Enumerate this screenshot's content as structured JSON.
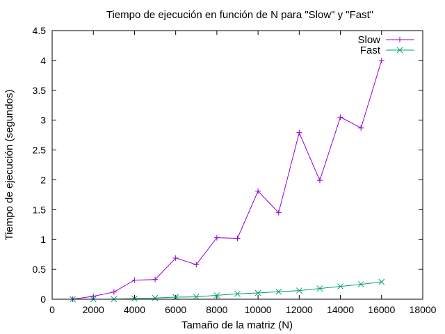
{
  "chart_data": {
    "type": "line",
    "title": "Tiempo de ejecución en función de N para \"Slow\" y \"Fast\"",
    "xlabel": "Tamaño de la matriz (N)",
    "ylabel": "Tiempo de ejecución (segundos)",
    "xlim": [
      0,
      18000
    ],
    "ylim": [
      0,
      4.5
    ],
    "x_ticks": [
      0,
      2000,
      4000,
      6000,
      8000,
      10000,
      12000,
      14000,
      16000,
      18000
    ],
    "x_tick_labels": [
      "0",
      "2000",
      "4000",
      "6000",
      "8000",
      "10000",
      "12000",
      "14000",
      "16000",
      "18000"
    ],
    "y_ticks": [
      0,
      0.5,
      1,
      1.5,
      2,
      2.5,
      3,
      3.5,
      4,
      4.5
    ],
    "y_tick_labels": [
      "0",
      "0.5",
      "1",
      "1.5",
      "2",
      "2.5",
      "3",
      "3.5",
      "4",
      "4.5"
    ],
    "grid": false,
    "legend_position": "top-right",
    "series": [
      {
        "name": "Slow",
        "color": "#9400d3",
        "marker": "plus",
        "x": [
          1000,
          2000,
          3000,
          4000,
          5000,
          6000,
          7000,
          8000,
          9000,
          10000,
          11000,
          12000,
          13000,
          14000,
          15000,
          16000
        ],
        "y": [
          0.0,
          0.05,
          0.12,
          0.32,
          0.33,
          0.69,
          0.58,
          1.03,
          1.02,
          1.81,
          1.45,
          2.79,
          1.99,
          3.05,
          2.87,
          4.0
        ]
      },
      {
        "name": "Fast",
        "color": "#009e73",
        "marker": "cross",
        "x": [
          1000,
          2000,
          3000,
          4000,
          5000,
          6000,
          7000,
          8000,
          9000,
          10000,
          11000,
          12000,
          13000,
          14000,
          15000,
          16000
        ],
        "y": [
          0.0,
          0.0,
          0.0,
          0.01,
          0.02,
          0.035,
          0.04,
          0.065,
          0.09,
          0.105,
          0.125,
          0.145,
          0.18,
          0.215,
          0.25,
          0.29
        ]
      }
    ]
  }
}
